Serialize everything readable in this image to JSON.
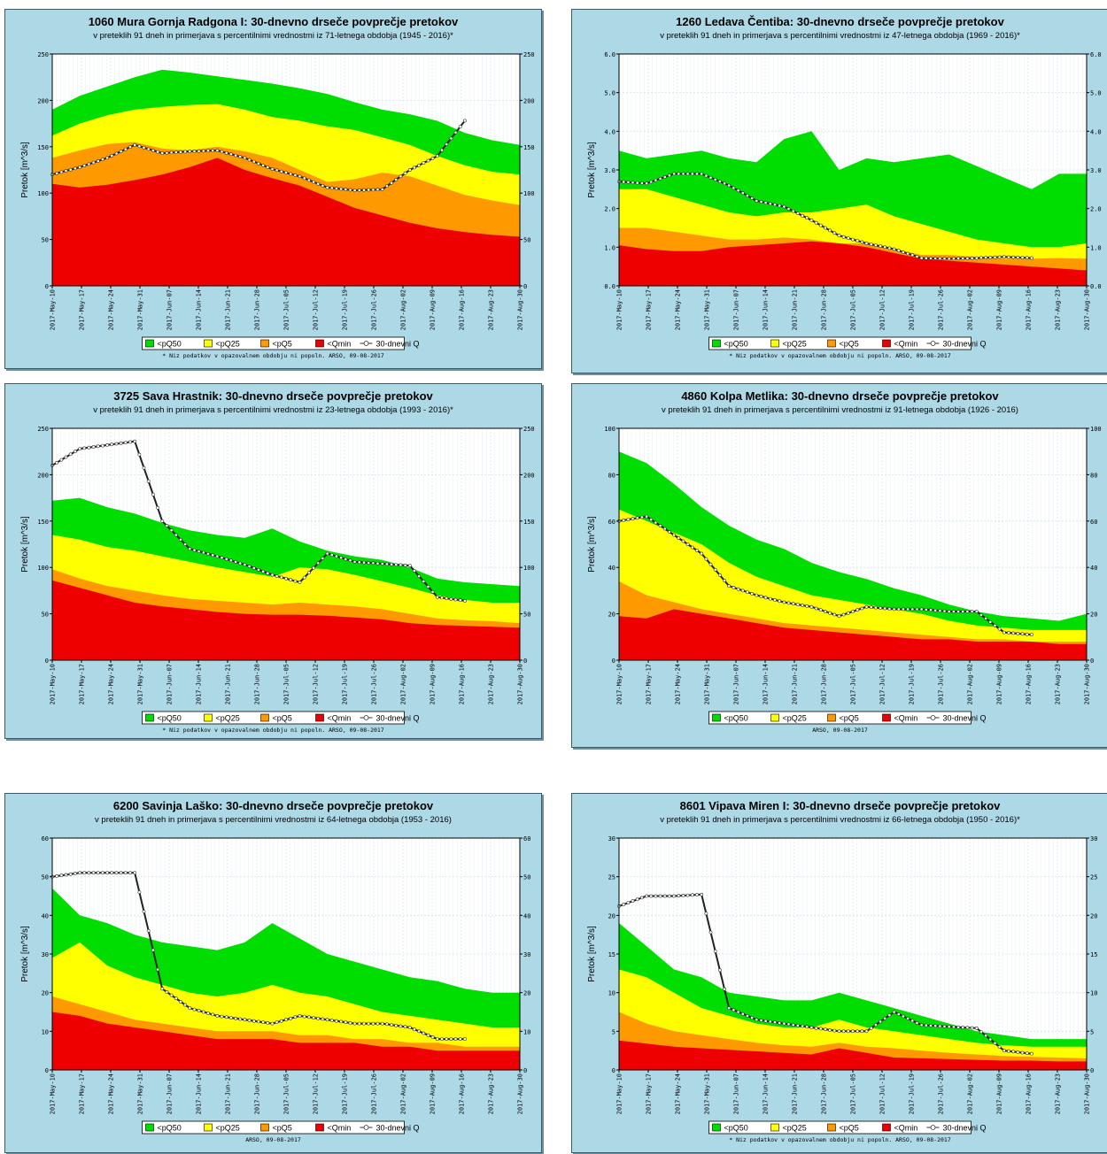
{
  "legend": {
    "items": [
      "<pQ50",
      "<pQ25",
      "<pQ5",
      "<Qmin",
      "30-dnevni Q"
    ]
  },
  "y_axis_label": "Pretok [m^3/s]",
  "colors": {
    "pQ50": "#00dd00",
    "pQ25": "#ffff00",
    "pQ5": "#ff9900",
    "Qmin": "#ee0000",
    "line": "#222222",
    "panel_bg": "#add8e6"
  },
  "x_ticks": [
    "2017-May-10",
    "2017-May-17",
    "2017-May-24",
    "2017-May-31",
    "2017-Jun-07",
    "2017-Jun-14",
    "2017-Jun-21",
    "2017-Jun-28",
    "2017-Jul-05",
    "2017-Jul-12",
    "2017-Jul-19",
    "2017-Jul-26",
    "2017-Aug-02",
    "2017-Aug-09",
    "2017-Aug-16",
    "2017-Aug-23",
    "2017-Aug-30"
  ],
  "chart_data": [
    {
      "type": "area",
      "title": "1060 Mura Gornja Radgona I: 30-dnevno drseče povprečje pretokov",
      "subtitle": "v preteklih 91 dneh in primerjava s percentilnimi vrednostmi iz 71-letnega obdobja (1945 - 2016)*",
      "ylabel": "Pretok [m^3/s]",
      "footnote": "* Niz podatkov v opazovalnem obdobju ni popoln. ARSO, 09-08-2017",
      "ylim": [
        0,
        250
      ],
      "yticks": [
        0,
        50,
        100,
        150,
        200,
        250
      ],
      "ytick_labels": [
        "0",
        "50",
        "100",
        "150",
        "200",
        "250"
      ],
      "series": [
        {
          "name": "<pQ50",
          "values": [
            190,
            205,
            215,
            225,
            233,
            230,
            226,
            222,
            218,
            213,
            207,
            198,
            190,
            185,
            178,
            165,
            157,
            152
          ]
        },
        {
          "name": "<pQ25",
          "values": [
            162,
            175,
            184,
            190,
            193,
            195,
            196,
            190,
            182,
            178,
            172,
            168,
            160,
            152,
            140,
            130,
            123,
            120
          ]
        },
        {
          "name": "<pQ5",
          "values": [
            138,
            146,
            153,
            155,
            148,
            146,
            150,
            145,
            138,
            125,
            112,
            115,
            122,
            118,
            108,
            98,
            92,
            87
          ]
        },
        {
          "name": "<Qmin",
          "values": [
            110,
            106,
            109,
            114,
            120,
            128,
            138,
            125,
            116,
            108,
            96,
            84,
            76,
            68,
            62,
            58,
            55,
            53
          ]
        },
        {
          "name": "30-dnevni Q",
          "values": [
            120,
            128,
            138,
            152,
            143,
            145,
            146,
            138,
            126,
            118,
            106,
            103,
            104,
            125,
            140,
            178,
            null,
            null
          ]
        }
      ]
    },
    {
      "type": "area",
      "title": "1260 Ledava Čentiba: 30-dnevno drseče povprečje pretokov",
      "subtitle": "v preteklih 91 dneh in primerjava s percentilnimi vrednostmi iz 47-letnega obdobja (1969 - 2016)*",
      "ylabel": "Pretok [m^3/s]",
      "footnote": "* Niz podatkov v opazovalnem obdobju ni popoln. ARSO, 09-08-2017",
      "ylim": [
        0,
        6
      ],
      "yticks": [
        0,
        1,
        2,
        3,
        4,
        5,
        6
      ],
      "ytick_labels": [
        "0.0",
        "1.0",
        "2.0",
        "3.0",
        "4.0",
        "5.0",
        "6.0"
      ],
      "series": [
        {
          "name": "<pQ50",
          "values": [
            3.5,
            3.3,
            3.4,
            3.5,
            3.3,
            3.2,
            3.8,
            4.0,
            3.0,
            3.3,
            3.2,
            3.3,
            3.4,
            3.1,
            2.8,
            2.5,
            2.9,
            2.9
          ]
        },
        {
          "name": "<pQ25",
          "values": [
            2.5,
            2.5,
            2.3,
            2.1,
            1.9,
            1.8,
            1.9,
            1.9,
            2.0,
            2.1,
            1.8,
            1.6,
            1.4,
            1.2,
            1.1,
            1.0,
            1.0,
            1.1
          ]
        },
        {
          "name": "<pQ5",
          "values": [
            1.5,
            1.5,
            1.4,
            1.3,
            1.2,
            1.2,
            1.25,
            1.2,
            1.1,
            1.1,
            0.95,
            0.8,
            0.8,
            0.75,
            0.7,
            0.7,
            0.72,
            0.7
          ]
        },
        {
          "name": "<Qmin",
          "values": [
            1.05,
            0.95,
            0.9,
            0.9,
            1.0,
            1.05,
            1.1,
            1.15,
            1.1,
            1.0,
            0.85,
            0.7,
            0.65,
            0.6,
            0.55,
            0.5,
            0.45,
            0.4
          ]
        },
        {
          "name": "30-dnevni Q",
          "values": [
            2.7,
            2.65,
            2.9,
            2.9,
            2.6,
            2.2,
            2.05,
            1.7,
            1.3,
            1.1,
            0.95,
            0.72,
            0.7,
            0.72,
            0.75,
            0.72,
            null,
            null
          ]
        }
      ]
    },
    {
      "type": "area",
      "title": "3725 Sava Hrastnik: 30-dnevno drseče povprečje pretokov",
      "subtitle": "v preteklih 91 dneh in primerjava s percentilnimi vrednostmi iz 23-letnega obdobja (1993 - 2016)*",
      "ylabel": "Pretok [m^3/s]",
      "footnote": "* Niz podatkov v opazovalnem obdobju ni popoln. ARSO, 09-08-2017",
      "ylim": [
        0,
        250
      ],
      "yticks": [
        0,
        50,
        100,
        150,
        200,
        250
      ],
      "ytick_labels": [
        "0",
        "50",
        "100",
        "150",
        "200",
        "250"
      ],
      "series": [
        {
          "name": "<pQ50",
          "values": [
            172,
            175,
            165,
            158,
            148,
            140,
            135,
            132,
            142,
            128,
            118,
            112,
            108,
            100,
            88,
            84,
            82,
            80
          ]
        },
        {
          "name": "<pQ25",
          "values": [
            135,
            130,
            122,
            118,
            112,
            106,
            100,
            95,
            90,
            100,
            98,
            92,
            85,
            78,
            70,
            65,
            62,
            62
          ]
        },
        {
          "name": "<pQ5",
          "values": [
            98,
            88,
            80,
            75,
            70,
            66,
            64,
            62,
            60,
            62,
            60,
            58,
            55,
            50,
            45,
            43,
            42,
            40
          ]
        },
        {
          "name": "<Qmin",
          "values": [
            86,
            78,
            70,
            62,
            58,
            55,
            52,
            50,
            49,
            49,
            48,
            46,
            44,
            40,
            38,
            37,
            36,
            35
          ]
        },
        {
          "name": "30-dnevni Q",
          "values": [
            210,
            228,
            232,
            236,
            150,
            120,
            112,
            103,
            92,
            84,
            115,
            106,
            104,
            102,
            68,
            64,
            null,
            null
          ]
        }
      ]
    },
    {
      "type": "area",
      "title": "4860 Kolpa Metlika: 30-dnevno drseče povprečje pretokov",
      "subtitle": "v preteklih 91 dneh in primerjava s percentilnimi vrednostmi iz 91-letnega obdobja (1926 - 2016)",
      "ylabel": "Pretok [m^3/s]",
      "footnote": "ARSO, 09-08-2017",
      "ylim": [
        0,
        100
      ],
      "yticks": [
        0,
        20,
        40,
        60,
        80,
        100
      ],
      "ytick_labels": [
        "0",
        "20",
        "40",
        "60",
        "80",
        "100"
      ],
      "series": [
        {
          "name": "<pQ50",
          "values": [
            90,
            85,
            76,
            66,
            58,
            52,
            48,
            42,
            38,
            35,
            31,
            28,
            24,
            21,
            19,
            18,
            17,
            20
          ]
        },
        {
          "name": "<pQ25",
          "values": [
            65,
            60,
            55,
            50,
            42,
            36,
            32,
            28,
            26,
            24,
            22,
            20,
            17,
            15,
            14,
            13,
            13,
            13
          ]
        },
        {
          "name": "<pQ5",
          "values": [
            34,
            28,
            25,
            22,
            20,
            18,
            16,
            15,
            14,
            13,
            12,
            11,
            10,
            9,
            9,
            8,
            8,
            8
          ]
        },
        {
          "name": "<Qmin",
          "values": [
            19,
            18,
            22,
            20,
            18,
            16,
            14,
            13,
            12,
            11,
            10,
            9,
            9,
            8,
            8,
            8,
            7,
            7
          ]
        },
        {
          "name": "30-dnevni Q",
          "values": [
            60,
            62,
            54,
            46,
            32,
            28,
            25,
            23,
            19,
            23,
            22,
            22,
            21,
            21,
            12,
            11,
            null,
            null
          ]
        }
      ]
    },
    {
      "type": "area",
      "title": "6200 Savinja Laško: 30-dnevno drseče povprečje pretokov",
      "subtitle": "v preteklih 91 dneh in primerjava s percentilnimi vrednostmi iz 64-letnega obdobja (1953 - 2016)",
      "ylabel": "Pretok [m^3/s]",
      "footnote": "ARSO, 09-08-2017",
      "ylim": [
        0,
        60
      ],
      "yticks": [
        0,
        10,
        20,
        30,
        40,
        50,
        60
      ],
      "ytick_labels": [
        "0",
        "10",
        "20",
        "30",
        "40",
        "50",
        "60"
      ],
      "series": [
        {
          "name": "<pQ50",
          "values": [
            47,
            40,
            38,
            35,
            33,
            32,
            31,
            33,
            38,
            34,
            30,
            28,
            26,
            24,
            23,
            21,
            20,
            20
          ]
        },
        {
          "name": "<pQ25",
          "values": [
            29,
            33,
            27,
            24,
            22,
            20,
            19,
            20,
            22,
            20,
            19,
            17,
            15,
            14,
            13,
            12,
            11,
            11
          ]
        },
        {
          "name": "<pQ5",
          "values": [
            19,
            17,
            15,
            13,
            12,
            11,
            10,
            10,
            10,
            9,
            9,
            8,
            8,
            7,
            7,
            6,
            6,
            6
          ]
        },
        {
          "name": "<Qmin",
          "values": [
            15,
            14,
            12,
            11,
            10,
            9,
            8,
            8,
            8,
            7,
            7,
            7,
            6,
            6,
            5,
            5,
            5,
            5
          ]
        },
        {
          "name": "30-dnevni Q",
          "values": [
            50,
            51,
            51,
            51,
            21,
            16,
            14,
            13,
            12,
            14,
            13,
            12,
            12,
            11,
            8,
            8,
            null,
            null
          ]
        }
      ]
    },
    {
      "type": "area",
      "title": "8601 Vipava Miren I: 30-dnevno drseče povprečje pretokov",
      "subtitle": "v preteklih 91 dneh in primerjava s percentilnimi vrednostmi iz 66-letnega obdobja (1950 - 2016)*",
      "ylabel": "Pretok [m^3/s]",
      "footnote": "* Niz podatkov v opazovalnem obdobju ni popoln. ARSO, 09-08-2017",
      "ylim": [
        0,
        30
      ],
      "yticks": [
        0,
        5,
        10,
        15,
        20,
        25,
        30
      ],
      "ytick_labels": [
        "0",
        "5",
        "10",
        "15",
        "20",
        "25",
        "30"
      ],
      "series": [
        {
          "name": "<pQ50",
          "values": [
            19,
            16,
            13,
            12,
            10,
            9.5,
            9,
            9,
            10,
            9,
            8,
            7,
            6,
            5,
            4.5,
            4,
            4,
            4
          ]
        },
        {
          "name": "<pQ25",
          "values": [
            13,
            12,
            10,
            8,
            7,
            6,
            5.5,
            5.5,
            6.5,
            5.5,
            5,
            4.5,
            4,
            3.5,
            3.2,
            3,
            3,
            3
          ]
        },
        {
          "name": "<pQ5",
          "values": [
            7.5,
            6,
            5,
            4.5,
            4,
            3.5,
            3.2,
            3,
            3.5,
            3,
            2.8,
            2.5,
            2.2,
            2,
            1.8,
            1.7,
            1.6,
            1.5
          ]
        },
        {
          "name": "<Qmin",
          "values": [
            3.8,
            3.4,
            3,
            2.8,
            2.6,
            2.4,
            2.2,
            2,
            2.8,
            2.2,
            1.6,
            1.5,
            1.4,
            1.3,
            1.2,
            1.2,
            1.1,
            1.1
          ]
        },
        {
          "name": "30-dnevni Q",
          "values": [
            21.2,
            22.5,
            22.5,
            22.7,
            8,
            6.5,
            6,
            5.5,
            5,
            5,
            7.5,
            5.8,
            5.6,
            5.4,
            2.5,
            2.1,
            null,
            null
          ]
        }
      ]
    }
  ]
}
